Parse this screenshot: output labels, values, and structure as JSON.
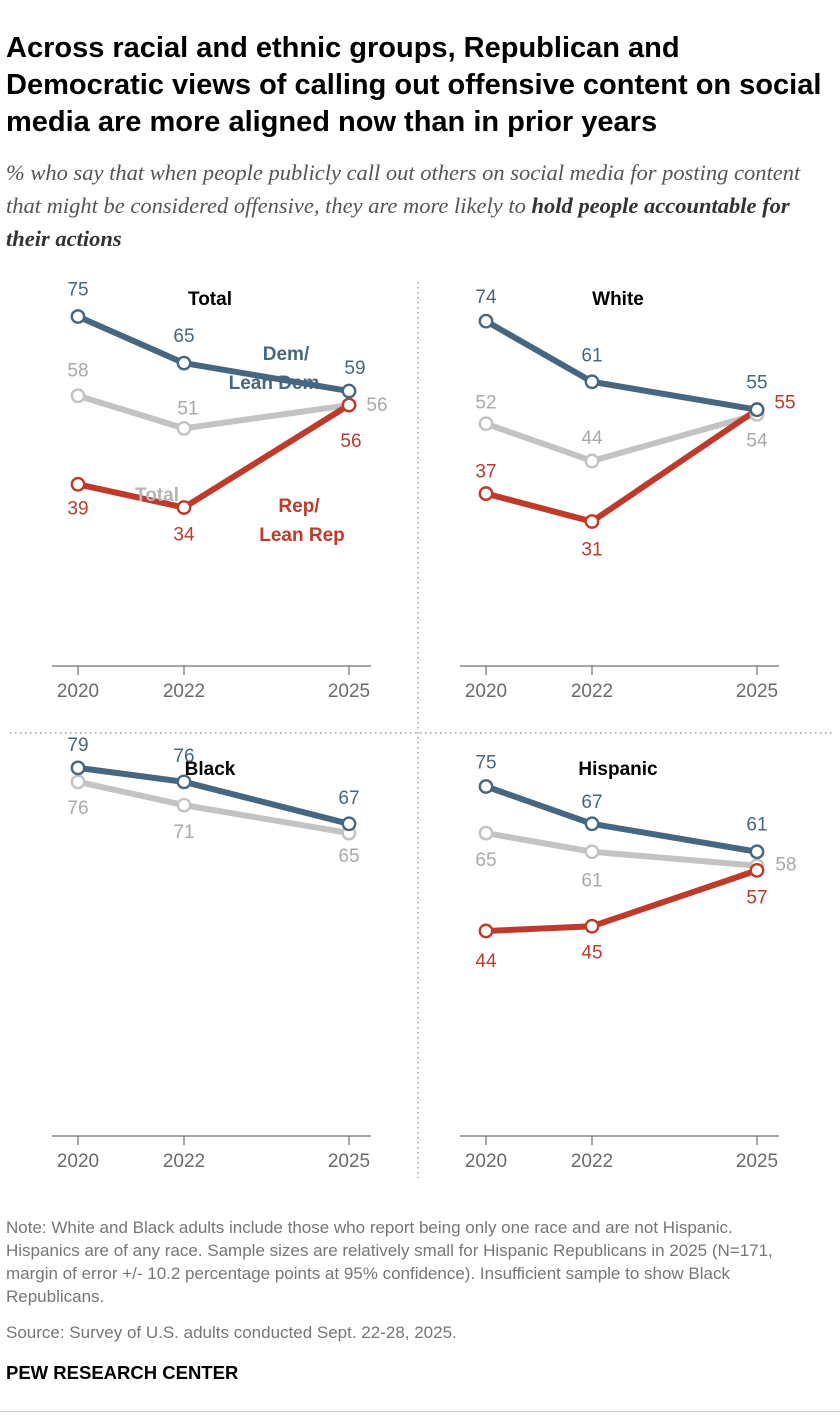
{
  "title": "Across racial and ethnic groups, Republican and Democratic views of calling out offensive content on social media are more aligned now than in prior years",
  "subtitle_plain": "% who say that when people publicly call out others on social media for posting content that might be considered offensive, they are more likely to",
  "subtitle_bold": "hold people accountable for their actions",
  "note": "Note: White and Black adults include those who report being only one race and are not Hispanic. Hispanics are of any race. Sample sizes are relatively small for Hispanic Republicans in 2025 (N=171, margin of error +/- 10.2 percentage points at 95% confidence). Insufficient sample to show Black Republicans.",
  "source": "Source: Survey of U.S. adults conducted Sept. 22-28, 2025.",
  "brand": "PEW RESEARCH CENTER",
  "colors": {
    "dem": "#46677f",
    "total": "#c3c3c3",
    "rep": "#be3a2b",
    "axis": "#6e6e6e",
    "panel_title": "#000000"
  },
  "inline_labels": {
    "dem": [
      "Dem/",
      "Lean Dem"
    ],
    "rep": [
      "Rep/",
      "Lean Rep"
    ],
    "total": "Total"
  },
  "chart_data": [
    {
      "type": "line",
      "title": "Total",
      "x": [
        "2020",
        "2022",
        "2025"
      ],
      "series": [
        {
          "name": "Dem/Lean Dem",
          "key": "dem",
          "values": [
            75,
            65,
            59
          ]
        },
        {
          "name": "Total",
          "key": "total",
          "values": [
            58,
            51,
            56
          ]
        },
        {
          "name": "Rep/Lean Rep",
          "key": "rep",
          "values": [
            39,
            34,
            56
          ]
        }
      ]
    },
    {
      "type": "line",
      "title": "White",
      "x": [
        "2020",
        "2022",
        "2025"
      ],
      "series": [
        {
          "key": "dem",
          "values": [
            74,
            61,
            55
          ]
        },
        {
          "key": "total",
          "values": [
            52,
            44,
            54
          ]
        },
        {
          "key": "rep",
          "values": [
            37,
            31,
            55
          ]
        }
      ]
    },
    {
      "type": "line",
      "title": "Black",
      "x": [
        "2020",
        "2022",
        "2025"
      ],
      "series": [
        {
          "key": "dem",
          "values": [
            79,
            76,
            67
          ]
        },
        {
          "key": "total",
          "values": [
            76,
            71,
            65
          ]
        }
      ]
    },
    {
      "type": "line",
      "title": "Hispanic",
      "x": [
        "2020",
        "2022",
        "2025"
      ],
      "series": [
        {
          "key": "dem",
          "values": [
            75,
            67,
            61
          ]
        },
        {
          "key": "total",
          "values": [
            65,
            61,
            58
          ]
        },
        {
          "key": "rep",
          "values": [
            44,
            45,
            57
          ]
        }
      ]
    }
  ]
}
